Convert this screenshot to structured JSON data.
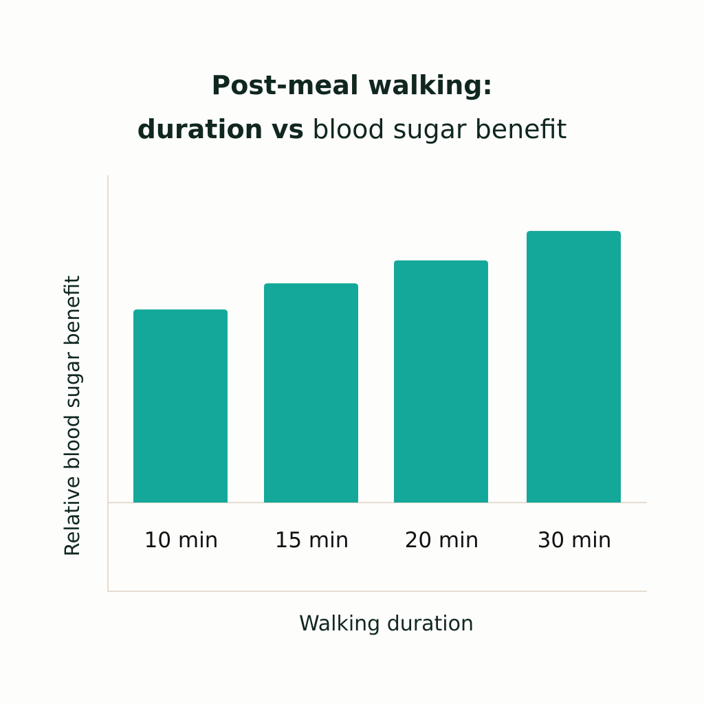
{
  "chart_data": {
    "type": "bar",
    "title_line1": "Post-meal walking:",
    "title_line2_bold_a": "duration",
    "title_line2_bold_b": "vs",
    "title_line2_rest": "blood sugar benefit",
    "xlabel": "Walking duration",
    "ylabel": "Relative blood sugar benefit",
    "categories": [
      "10 min",
      "15 min",
      "20 min",
      "30 min"
    ],
    "values": [
      0.59,
      0.67,
      0.74,
      0.83
    ],
    "ylim": [
      0,
      1
    ],
    "grid": false,
    "y_ticks_shown": false,
    "colors": {
      "bar": "#14a89a",
      "axis": "#e6dccf",
      "text": "#10271f"
    }
  }
}
